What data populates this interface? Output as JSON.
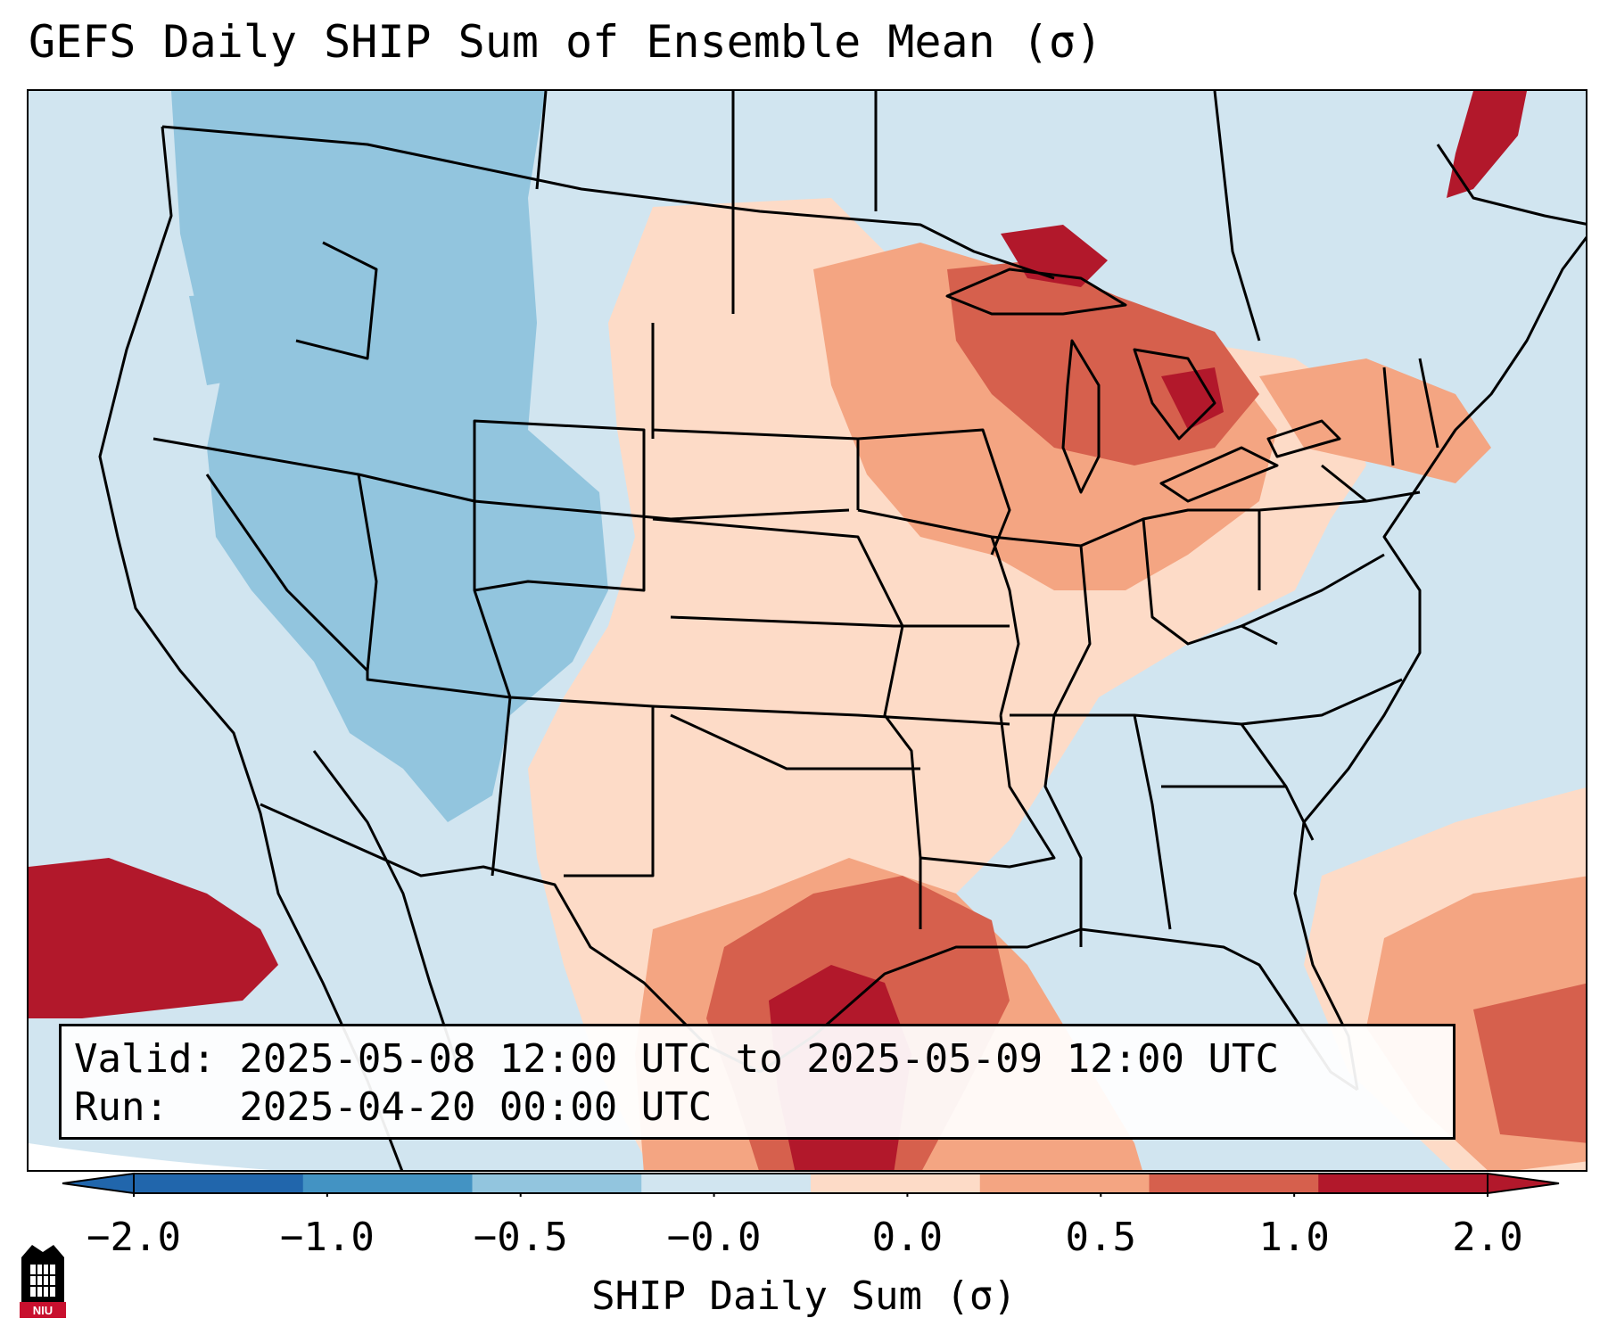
{
  "title": "GEFS Daily SHIP Sum of Ensemble Mean (σ)",
  "info": {
    "valid_line": "Valid: 2025-05-08 12:00 UTC to 2025-05-09 12:00 UTC",
    "run_line": "Run:   2025-04-20 00:00 UTC"
  },
  "colorbar": {
    "label": "SHIP Daily Sum (σ)",
    "ticks": [
      "−2.0",
      "−1.0",
      "−0.5",
      "−0.0",
      "0.0",
      "0.5",
      "1.0",
      "2.0"
    ],
    "colors": [
      "#2166ac",
      "#4393c3",
      "#92c5de",
      "#d1e5f0",
      "#fddbc7",
      "#f4a582",
      "#d6604d",
      "#b2182b"
    ],
    "extend": "both"
  },
  "map": {
    "projection": "Lambert Conformal (CONUS)",
    "background_color": "#d1e5f0",
    "anomaly_regions": [
      {
        "name": "interior-west",
        "level": "-1.0 to -0.5",
        "color": "#92c5de"
      },
      {
        "name": "plains-and-south",
        "level": "0.0 to 0.5",
        "color": "#fddbc7"
      },
      {
        "name": "upper-midwest",
        "level": "0.5 to 1.0",
        "color": "#f4a582"
      },
      {
        "name": "great-lakes",
        "level": "1.0 to 2.0",
        "color": "#d6604d"
      },
      {
        "name": "gulf-of-mexico",
        "level": "> 2.0",
        "color": "#b2182b"
      },
      {
        "name": "eastern-pacific",
        "level": "> 2.0",
        "color": "#b2182b"
      },
      {
        "name": "western-atlantic",
        "level": "0.5 to 1.0",
        "color": "#f4a582"
      },
      {
        "name": "gulf-of-st-lawrence",
        "level": "> 2.0",
        "color": "#b2182b"
      }
    ]
  },
  "logo": {
    "text": "NIU"
  }
}
